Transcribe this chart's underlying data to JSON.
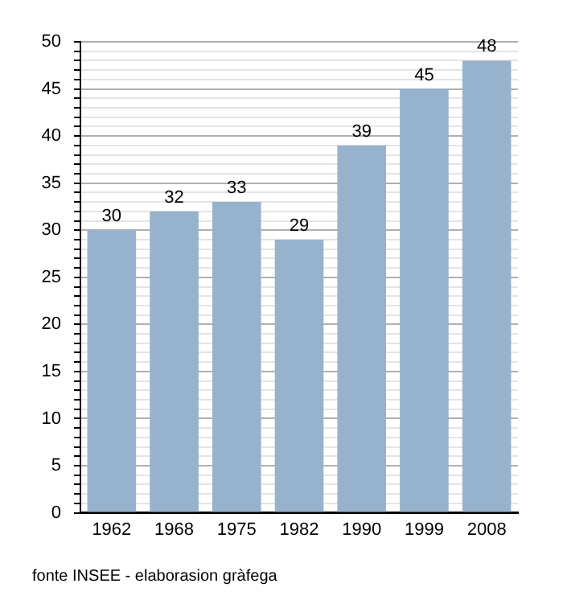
{
  "chart_data": {
    "type": "bar",
    "categories": [
      "1962",
      "1968",
      "1975",
      "1982",
      "1990",
      "1999",
      "2008"
    ],
    "values": [
      30,
      32,
      33,
      29,
      39,
      45,
      48
    ],
    "color": "#97b2cc",
    "ylim": [
      0,
      50
    ],
    "yticks": [
      0,
      {
        "value": 1,
        "label": null
      },
      {
        "value": 2,
        "label": null
      },
      {
        "value": 3,
        "label": null
      },
      {
        "value": 4,
        "label": null
      },
      5,
      {
        "value": 6,
        "label": null
      },
      {
        "value": 7,
        "label": null
      },
      {
        "value": 8,
        "label": null
      },
      {
        "value": 9,
        "label": null
      },
      10,
      {
        "value": 11,
        "label": null
      },
      {
        "value": 12,
        "label": null
      },
      {
        "value": 13,
        "label": null
      },
      {
        "value": 14,
        "label": null
      },
      15,
      {
        "value": 16,
        "label": null
      },
      {
        "value": 17,
        "label": null
      },
      {
        "value": 18,
        "label": null
      },
      {
        "value": 19,
        "label": null
      },
      20,
      {
        "value": 21,
        "label": null
      },
      {
        "value": 22,
        "label": null
      },
      {
        "value": 23,
        "label": null
      },
      {
        "value": 24,
        "label": null
      },
      25,
      {
        "value": 26,
        "label": null
      },
      {
        "value": 27,
        "label": null
      },
      {
        "value": 28,
        "label": null
      },
      {
        "value": 29,
        "label": null
      },
      30,
      {
        "value": 31,
        "label": null
      },
      {
        "value": 32,
        "label": null
      },
      {
        "value": 33,
        "label": null
      },
      {
        "value": 34,
        "label": null
      },
      35,
      {
        "value": 36,
        "label": null
      },
      {
        "value": 37,
        "label": null
      },
      {
        "value": 38,
        "label": null
      },
      {
        "value": 39,
        "label": null
      },
      40,
      {
        "value": 41,
        "label": null
      },
      {
        "value": 42,
        "label": null
      },
      {
        "value": 43,
        "label": null
      },
      {
        "value": 44,
        "label": null
      },
      45,
      {
        "value": 46,
        "label": null
      },
      {
        "value": 47,
        "label": null
      },
      {
        "value": 48,
        "label": null
      },
      {
        "value": 49,
        "label": null
      },
      50
    ],
    "grid": "y",
    "data_labels": true,
    "annotations": [
      "fonte INSEE - elaborasion gràfega"
    ]
  }
}
